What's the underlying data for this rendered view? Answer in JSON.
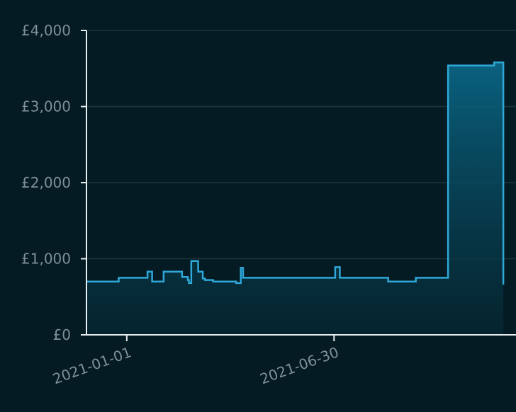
{
  "chart_data": {
    "type": "step-area",
    "color": "#2fa8d8",
    "x": [
      "2020-11-27",
      "2020-12-25",
      "2021-01-19",
      "2021-01-23",
      "2021-02-02",
      "2021-02-18",
      "2021-02-23",
      "2021-02-24",
      "2021-02-26",
      "2021-03-04",
      "2021-03-08",
      "2021-03-10",
      "2021-03-17",
      "2021-04-06",
      "2021-04-10",
      "2021-04-12",
      "2021-07-01",
      "2021-07-05",
      "2021-08-16",
      "2021-09-09",
      "2021-10-07",
      "2021-11-16",
      "2021-11-24"
    ],
    "values": [
      700,
      750,
      830,
      700,
      830,
      760,
      720,
      680,
      970,
      830,
      740,
      720,
      700,
      680,
      880,
      750,
      890,
      750,
      700,
      750,
      3540,
      3580,
      660
    ],
    "xlim": [
      "2020-11-27",
      "2021-12-05"
    ],
    "xticks": [
      "2021-01-01",
      "2021-06-30"
    ],
    "ylim": [
      0,
      4000
    ],
    "yticks": [
      {
        "value": 0,
        "label": "£0"
      },
      {
        "value": 1000,
        "label": "£1,000"
      },
      {
        "value": 2000,
        "label": "£2,000"
      },
      {
        "value": 3000,
        "label": "£3,000"
      },
      {
        "value": 4000,
        "label": "£4,000"
      }
    ],
    "grid": true
  }
}
